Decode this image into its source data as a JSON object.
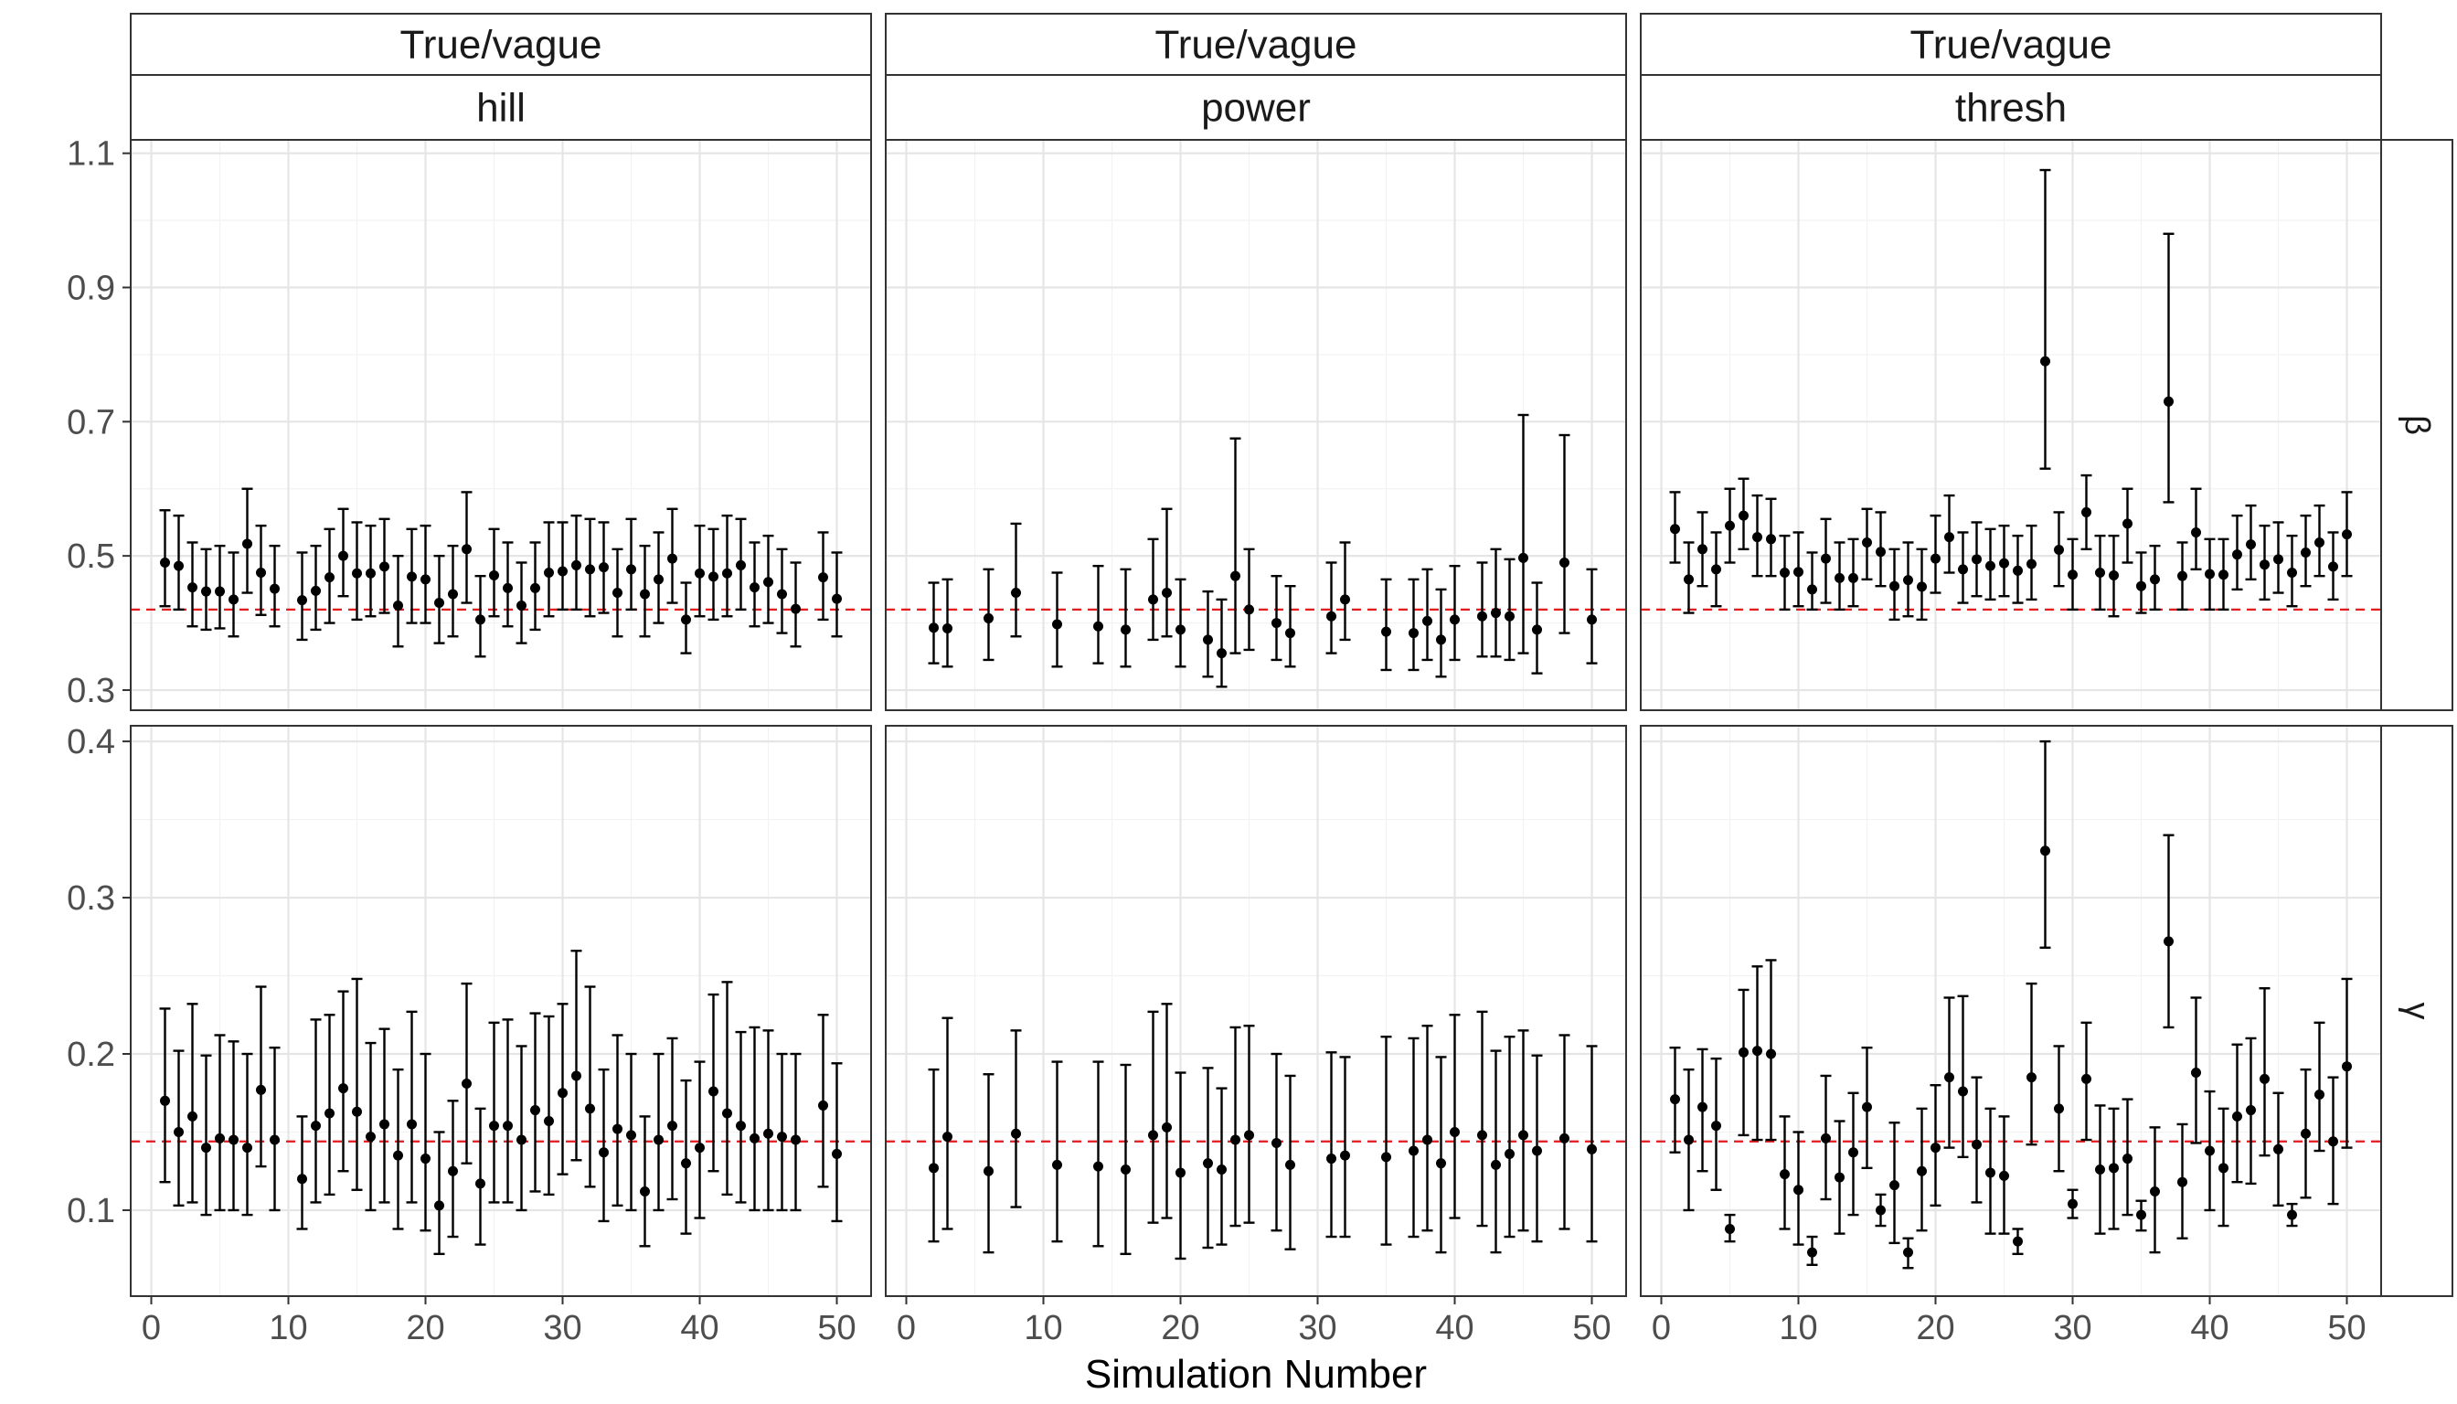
{
  "chart_data": {
    "type": "scatter",
    "subtype": "point-range (estimates with interval bars), faceted grid",
    "xlabel": "Simulation Number",
    "ylabel": "",
    "xlim": [
      -1.5,
      52.5
    ],
    "x_ticks": [
      0,
      10,
      20,
      30,
      40,
      50
    ],
    "grid": true,
    "legend": "none",
    "colors": {
      "points": "#000000",
      "reference_line": "#e41a1c",
      "strip_fill": "#ffffff",
      "grid": "#e5e5e5",
      "tick_label": "#4d4d4d"
    },
    "column_strips": [
      {
        "top": "True/vague",
        "bottom": "hill"
      },
      {
        "top": "True/vague",
        "bottom": "power"
      },
      {
        "top": "True/vague",
        "bottom": "thresh"
      }
    ],
    "row_strips": [
      {
        "label": "β",
        "reference_value": 0.42,
        "ylim": [
          0.27,
          1.12
        ],
        "y_ticks": [
          0.3,
          0.5,
          0.7,
          0.9,
          1.1
        ],
        "y_tick_labels": [
          "0.3",
          "0.5",
          "0.7",
          "0.9",
          "1.1"
        ]
      },
      {
        "label": "γ",
        "reference_value": 0.144,
        "ylim": [
          0.045,
          0.41
        ],
        "y_ticks": [
          0.1,
          0.2,
          0.3,
          0.4
        ],
        "y_tick_labels": [
          "0.1",
          "0.2",
          "0.3",
          "0.4"
        ]
      }
    ],
    "panels": [
      {
        "row": 0,
        "col": 0,
        "model": "hill",
        "parameter": "β",
        "sims": [
          1,
          2,
          3,
          4,
          5,
          6,
          7,
          8,
          9,
          11,
          12,
          13,
          14,
          15,
          16,
          17,
          18,
          19,
          20,
          21,
          22,
          23,
          24,
          25,
          26,
          27,
          28,
          29,
          30,
          31,
          32,
          33,
          34,
          35,
          36,
          37,
          38,
          39,
          40,
          41,
          42,
          43,
          44,
          45,
          46,
          47,
          49,
          50
        ],
        "est": [
          0.49,
          0.485,
          0.453,
          0.447,
          0.447,
          0.435,
          0.518,
          0.475,
          0.451,
          0.434,
          0.448,
          0.468,
          0.5,
          0.474,
          0.474,
          0.484,
          0.426,
          0.469,
          0.465,
          0.43,
          0.443,
          0.51,
          0.405,
          0.471,
          0.452,
          0.426,
          0.452,
          0.475,
          0.477,
          0.486,
          0.48,
          0.483,
          0.445,
          0.48,
          0.443,
          0.465,
          0.496,
          0.405,
          0.474,
          0.469,
          0.474,
          0.486,
          0.453,
          0.461,
          0.443,
          0.421,
          0.468,
          0.436
        ],
        "lo": [
          0.425,
          0.42,
          0.395,
          0.39,
          0.392,
          0.38,
          0.445,
          0.412,
          0.395,
          0.375,
          0.39,
          0.4,
          0.44,
          0.405,
          0.41,
          0.415,
          0.365,
          0.4,
          0.4,
          0.37,
          0.38,
          0.43,
          0.35,
          0.41,
          0.395,
          0.37,
          0.39,
          0.41,
          0.42,
          0.42,
          0.41,
          0.415,
          0.38,
          0.42,
          0.38,
          0.4,
          0.43,
          0.355,
          0.41,
          0.405,
          0.41,
          0.42,
          0.395,
          0.4,
          0.385,
          0.365,
          0.405,
          0.38
        ],
        "hi": [
          0.568,
          0.56,
          0.52,
          0.51,
          0.515,
          0.505,
          0.6,
          0.545,
          0.515,
          0.505,
          0.515,
          0.54,
          0.57,
          0.55,
          0.545,
          0.555,
          0.5,
          0.54,
          0.545,
          0.5,
          0.515,
          0.595,
          0.47,
          0.54,
          0.52,
          0.49,
          0.52,
          0.55,
          0.55,
          0.56,
          0.555,
          0.55,
          0.51,
          0.555,
          0.515,
          0.535,
          0.57,
          0.46,
          0.545,
          0.54,
          0.56,
          0.555,
          0.52,
          0.53,
          0.51,
          0.49,
          0.535,
          0.505
        ]
      },
      {
        "row": 0,
        "col": 1,
        "model": "power",
        "parameter": "β",
        "sims": [
          2,
          3,
          6,
          8,
          11,
          14,
          16,
          18,
          19,
          20,
          22,
          23,
          24,
          25,
          27,
          28,
          31,
          32,
          35,
          37,
          38,
          39,
          40,
          42,
          43,
          44,
          45,
          46,
          48,
          50
        ],
        "est": [
          0.393,
          0.392,
          0.407,
          0.445,
          0.398,
          0.395,
          0.39,
          0.435,
          0.445,
          0.39,
          0.375,
          0.355,
          0.47,
          0.42,
          0.4,
          0.385,
          0.41,
          0.435,
          0.387,
          0.385,
          0.403,
          0.375,
          0.405,
          0.41,
          0.415,
          0.41,
          0.497,
          0.39,
          0.49,
          0.405
        ],
        "lo": [
          0.34,
          0.335,
          0.345,
          0.38,
          0.335,
          0.34,
          0.335,
          0.375,
          0.38,
          0.335,
          0.32,
          0.305,
          0.355,
          0.36,
          0.345,
          0.335,
          0.355,
          0.375,
          0.33,
          0.33,
          0.345,
          0.32,
          0.345,
          0.35,
          0.35,
          0.345,
          0.355,
          0.325,
          0.385,
          0.34
        ],
        "hi": [
          0.46,
          0.465,
          0.48,
          0.548,
          0.475,
          0.485,
          0.48,
          0.525,
          0.57,
          0.465,
          0.447,
          0.435,
          0.675,
          0.51,
          0.47,
          0.455,
          0.49,
          0.52,
          0.465,
          0.465,
          0.48,
          0.45,
          0.485,
          0.49,
          0.51,
          0.495,
          0.71,
          0.46,
          0.68,
          0.48
        ]
      },
      {
        "row": 0,
        "col": 2,
        "model": "thresh",
        "parameter": "β",
        "sims": [
          1,
          2,
          3,
          4,
          5,
          6,
          7,
          8,
          9,
          10,
          11,
          12,
          13,
          14,
          15,
          16,
          17,
          18,
          19,
          20,
          21,
          22,
          23,
          24,
          25,
          26,
          27,
          28,
          29,
          30,
          31,
          32,
          33,
          34,
          35,
          36,
          37,
          38,
          39,
          40,
          41,
          42,
          43,
          44,
          45,
          46,
          47,
          48,
          49,
          50
        ],
        "est": [
          0.54,
          0.465,
          0.51,
          0.48,
          0.545,
          0.56,
          0.528,
          0.525,
          0.475,
          0.476,
          0.45,
          0.496,
          0.467,
          0.467,
          0.52,
          0.506,
          0.455,
          0.464,
          0.454,
          0.496,
          0.528,
          0.48,
          0.495,
          0.485,
          0.489,
          0.478,
          0.488,
          0.79,
          0.509,
          0.472,
          0.565,
          0.475,
          0.471,
          0.548,
          0.455,
          0.465,
          0.73,
          0.47,
          0.535,
          0.473,
          0.472,
          0.502,
          0.517,
          0.487,
          0.495,
          0.475,
          0.505,
          0.52,
          0.484,
          0.532
        ],
        "lo": [
          0.49,
          0.415,
          0.455,
          0.425,
          0.49,
          0.51,
          0.47,
          0.47,
          0.42,
          0.425,
          0.42,
          0.43,
          0.42,
          0.425,
          0.465,
          0.455,
          0.405,
          0.41,
          0.405,
          0.445,
          0.475,
          0.43,
          0.44,
          0.435,
          0.44,
          0.43,
          0.435,
          0.63,
          0.455,
          0.42,
          0.51,
          0.42,
          0.41,
          0.49,
          0.415,
          0.42,
          0.58,
          0.42,
          0.48,
          0.42,
          0.42,
          0.45,
          0.465,
          0.435,
          0.445,
          0.425,
          0.455,
          0.47,
          0.435,
          0.47
        ],
        "hi": [
          0.595,
          0.52,
          0.565,
          0.535,
          0.6,
          0.615,
          0.59,
          0.585,
          0.53,
          0.535,
          0.505,
          0.555,
          0.52,
          0.525,
          0.57,
          0.565,
          0.51,
          0.52,
          0.51,
          0.56,
          0.59,
          0.535,
          0.55,
          0.54,
          0.545,
          0.53,
          0.545,
          1.075,
          0.565,
          0.525,
          0.62,
          0.53,
          0.53,
          0.6,
          0.505,
          0.515,
          0.98,
          0.52,
          0.6,
          0.525,
          0.525,
          0.56,
          0.575,
          0.545,
          0.55,
          0.53,
          0.56,
          0.575,
          0.535,
          0.595
        ]
      },
      {
        "row": 1,
        "col": 0,
        "model": "hill",
        "parameter": "γ",
        "sims": [
          1,
          2,
          3,
          4,
          5,
          6,
          7,
          8,
          9,
          11,
          12,
          13,
          14,
          15,
          16,
          17,
          18,
          19,
          20,
          21,
          22,
          23,
          24,
          25,
          26,
          27,
          28,
          29,
          30,
          31,
          32,
          33,
          34,
          35,
          36,
          37,
          38,
          39,
          40,
          41,
          42,
          43,
          44,
          45,
          46,
          47,
          49,
          50
        ],
        "est": [
          0.17,
          0.15,
          0.16,
          0.14,
          0.146,
          0.145,
          0.14,
          0.177,
          0.145,
          0.12,
          0.154,
          0.162,
          0.178,
          0.163,
          0.147,
          0.155,
          0.135,
          0.155,
          0.133,
          0.103,
          0.125,
          0.181,
          0.117,
          0.154,
          0.154,
          0.145,
          0.164,
          0.157,
          0.175,
          0.186,
          0.165,
          0.137,
          0.152,
          0.148,
          0.112,
          0.145,
          0.154,
          0.13,
          0.14,
          0.176,
          0.162,
          0.154,
          0.146,
          0.149,
          0.147,
          0.145,
          0.167,
          0.136
        ],
        "lo": [
          0.118,
          0.103,
          0.105,
          0.097,
          0.1,
          0.1,
          0.097,
          0.128,
          0.1,
          0.088,
          0.105,
          0.11,
          0.125,
          0.113,
          0.1,
          0.105,
          0.088,
          0.105,
          0.087,
          0.072,
          0.083,
          0.13,
          0.078,
          0.105,
          0.105,
          0.1,
          0.112,
          0.11,
          0.123,
          0.132,
          0.115,
          0.093,
          0.103,
          0.1,
          0.077,
          0.1,
          0.107,
          0.085,
          0.095,
          0.125,
          0.11,
          0.105,
          0.1,
          0.1,
          0.1,
          0.1,
          0.115,
          0.093
        ],
        "hi": [
          0.229,
          0.202,
          0.232,
          0.199,
          0.212,
          0.208,
          0.2,
          0.243,
          0.204,
          0.16,
          0.222,
          0.225,
          0.24,
          0.248,
          0.207,
          0.216,
          0.19,
          0.227,
          0.2,
          0.15,
          0.17,
          0.245,
          0.165,
          0.22,
          0.222,
          0.205,
          0.226,
          0.224,
          0.232,
          0.266,
          0.243,
          0.19,
          0.212,
          0.2,
          0.16,
          0.2,
          0.21,
          0.183,
          0.195,
          0.238,
          0.246,
          0.214,
          0.217,
          0.215,
          0.2,
          0.2,
          0.225,
          0.194
        ]
      },
      {
        "row": 1,
        "col": 1,
        "model": "power",
        "parameter": "γ",
        "sims": [
          2,
          3,
          6,
          8,
          11,
          14,
          16,
          18,
          19,
          20,
          22,
          23,
          24,
          25,
          27,
          28,
          31,
          32,
          35,
          37,
          38,
          39,
          40,
          42,
          43,
          44,
          45,
          46,
          48,
          50
        ],
        "est": [
          0.127,
          0.147,
          0.125,
          0.149,
          0.129,
          0.128,
          0.126,
          0.148,
          0.153,
          0.124,
          0.13,
          0.126,
          0.145,
          0.148,
          0.143,
          0.129,
          0.133,
          0.135,
          0.134,
          0.138,
          0.145,
          0.13,
          0.15,
          0.148,
          0.129,
          0.136,
          0.148,
          0.138,
          0.146,
          0.139
        ],
        "lo": [
          0.08,
          0.088,
          0.073,
          0.102,
          0.08,
          0.077,
          0.072,
          0.092,
          0.095,
          0.069,
          0.076,
          0.078,
          0.09,
          0.092,
          0.087,
          0.075,
          0.083,
          0.083,
          0.078,
          0.083,
          0.087,
          0.073,
          0.095,
          0.09,
          0.073,
          0.083,
          0.087,
          0.08,
          0.088,
          0.08
        ],
        "hi": [
          0.19,
          0.223,
          0.187,
          0.215,
          0.195,
          0.195,
          0.193,
          0.227,
          0.232,
          0.188,
          0.191,
          0.178,
          0.217,
          0.218,
          0.2,
          0.186,
          0.201,
          0.198,
          0.211,
          0.21,
          0.218,
          0.198,
          0.225,
          0.227,
          0.202,
          0.211,
          0.215,
          0.199,
          0.212,
          0.205
        ]
      },
      {
        "row": 1,
        "col": 2,
        "model": "thresh",
        "parameter": "γ",
        "sims": [
          1,
          2,
          3,
          4,
          5,
          6,
          7,
          8,
          9,
          10,
          11,
          12,
          13,
          14,
          15,
          16,
          17,
          18,
          19,
          20,
          21,
          22,
          23,
          24,
          25,
          26,
          27,
          28,
          29,
          30,
          31,
          32,
          33,
          34,
          35,
          36,
          37,
          38,
          39,
          40,
          41,
          42,
          43,
          44,
          45,
          46,
          47,
          48,
          49,
          50
        ],
        "est": [
          0.171,
          0.145,
          0.166,
          0.154,
          0.088,
          0.201,
          0.202,
          0.2,
          0.123,
          0.113,
          0.073,
          0.146,
          0.121,
          0.137,
          0.166,
          0.1,
          0.116,
          0.073,
          0.125,
          0.14,
          0.185,
          0.176,
          0.142,
          0.124,
          0.122,
          0.08,
          0.185,
          0.33,
          0.165,
          0.104,
          0.184,
          0.126,
          0.127,
          0.133,
          0.097,
          0.112,
          0.272,
          0.118,
          0.188,
          0.138,
          0.127,
          0.16,
          0.164,
          0.184,
          0.139,
          0.097,
          0.149,
          0.174,
          0.144,
          0.192
        ],
        "lo": [
          0.137,
          0.1,
          0.125,
          0.113,
          0.08,
          0.148,
          0.145,
          0.145,
          0.088,
          0.078,
          0.065,
          0.107,
          0.085,
          0.097,
          0.127,
          0.09,
          0.079,
          0.063,
          0.087,
          0.103,
          0.14,
          0.134,
          0.105,
          0.085,
          0.085,
          0.072,
          0.142,
          0.268,
          0.125,
          0.095,
          0.145,
          0.085,
          0.088,
          0.097,
          0.087,
          0.073,
          0.217,
          0.082,
          0.143,
          0.1,
          0.09,
          0.118,
          0.117,
          0.135,
          0.103,
          0.09,
          0.108,
          0.138,
          0.104,
          0.14
        ],
        "hi": [
          0.204,
          0.19,
          0.203,
          0.197,
          0.097,
          0.241,
          0.256,
          0.26,
          0.16,
          0.15,
          0.083,
          0.186,
          0.157,
          0.175,
          0.204,
          0.11,
          0.156,
          0.082,
          0.165,
          0.18,
          0.236,
          0.237,
          0.185,
          0.165,
          0.16,
          0.088,
          0.245,
          0.4,
          0.205,
          0.113,
          0.22,
          0.167,
          0.165,
          0.171,
          0.106,
          0.153,
          0.34,
          0.155,
          0.236,
          0.176,
          0.165,
          0.206,
          0.21,
          0.242,
          0.175,
          0.104,
          0.19,
          0.22,
          0.185,
          0.248
        ]
      }
    ]
  }
}
